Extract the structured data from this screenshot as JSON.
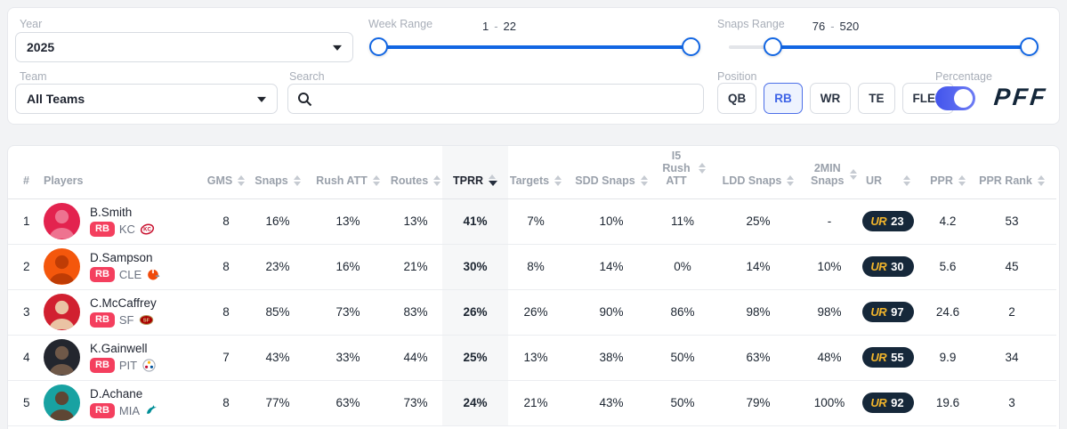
{
  "filters": {
    "year": {
      "label": "Year",
      "value": "2025"
    },
    "team": {
      "label": "Team",
      "value": "All Teams"
    },
    "search": {
      "label": "Search",
      "value": ""
    },
    "week_range": {
      "label": "Week Range",
      "min": "1",
      "sep": "-",
      "max": "22"
    },
    "snaps_range": {
      "label": "Snaps Range",
      "min": "76",
      "sep": "-",
      "max": "520"
    },
    "position": {
      "label": "Position",
      "options": [
        "QB",
        "RB",
        "WR",
        "TE",
        "FLEX"
      ],
      "selected": "RB"
    },
    "percentage": {
      "label": "Percentage",
      "enabled": true
    },
    "brand_logo": "PFF"
  },
  "colors": {
    "accent_blue": "#1266e3",
    "toggle_indigo": "#5b67f0",
    "badge_navy": "#16283a",
    "badge_yellow": "#f2b52b",
    "rb_badge_pink": "#f43f5e",
    "tprr_band": "#f6f7f8"
  },
  "table": {
    "ur_logo": "UR",
    "columns": [
      {
        "label": "#"
      },
      {
        "label": "Players"
      },
      {
        "label": "GMS",
        "sortable": true
      },
      {
        "label": "Snaps",
        "sortable": true
      },
      {
        "label": "Rush ATT",
        "sortable": true
      },
      {
        "label": "Routes",
        "sortable": true
      },
      {
        "label": "TPRR",
        "sortable": true,
        "sorted": "desc"
      },
      {
        "label": "Targets",
        "sortable": true
      },
      {
        "label": "SDD Snaps",
        "sortable": true
      },
      {
        "label": "I5 Rush\nATT",
        "sortable": true
      },
      {
        "label": "LDD Snaps",
        "sortable": true
      },
      {
        "label": "2MIN\nSnaps",
        "sortable": true
      },
      {
        "label": "UR",
        "sortable": true
      },
      {
        "label": "PPR",
        "sortable": true
      },
      {
        "label": "PPR Rank",
        "sortable": true
      }
    ],
    "rows": [
      {
        "rank": "1",
        "name": "B.Smith",
        "position": "RB",
        "team": "KC",
        "gms": "8",
        "snaps": "16%",
        "rush_att": "13%",
        "routes": "13%",
        "tprr": "41%",
        "targets": "7%",
        "sdd_snaps": "10%",
        "i5_rush_att": "11%",
        "ldd_snaps": "25%",
        "two_min_snaps": "-",
        "ur": "23",
        "ppr": "4.2",
        "ppr_rank": "53",
        "avatar_bg": "#e3234f",
        "avatar_fg": "#ee7390"
      },
      {
        "rank": "2",
        "name": "D.Sampson",
        "position": "RB",
        "team": "CLE",
        "gms": "8",
        "snaps": "23%",
        "rush_att": "16%",
        "routes": "21%",
        "tprr": "30%",
        "targets": "8%",
        "sdd_snaps": "14%",
        "i5_rush_att": "0%",
        "ldd_snaps": "14%",
        "two_min_snaps": "10%",
        "ur": "30",
        "ppr": "5.6",
        "ppr_rank": "45",
        "avatar_bg": "#f4570c",
        "avatar_fg": "#bf3c05"
      },
      {
        "rank": "3",
        "name": "C.McCaffrey",
        "position": "RB",
        "team": "SF",
        "gms": "8",
        "snaps": "85%",
        "rush_att": "73%",
        "routes": "83%",
        "tprr": "26%",
        "targets": "26%",
        "sdd_snaps": "90%",
        "i5_rush_att": "86%",
        "ldd_snaps": "98%",
        "two_min_snaps": "98%",
        "ur": "97",
        "ppr": "24.6",
        "ppr_rank": "2",
        "avatar_bg": "#d12030",
        "avatar_fg": "#eac3a4"
      },
      {
        "rank": "4",
        "name": "K.Gainwell",
        "position": "RB",
        "team": "PIT",
        "gms": "7",
        "snaps": "43%",
        "rush_att": "33%",
        "routes": "44%",
        "tprr": "25%",
        "targets": "13%",
        "sdd_snaps": "38%",
        "i5_rush_att": "50%",
        "ldd_snaps": "63%",
        "two_min_snaps": "48%",
        "ur": "55",
        "ppr": "9.9",
        "ppr_rank": "34",
        "avatar_bg": "#23262e",
        "avatar_fg": "#6f5848"
      },
      {
        "rank": "5",
        "name": "D.Achane",
        "position": "RB",
        "team": "MIA",
        "gms": "8",
        "snaps": "77%",
        "rush_att": "63%",
        "routes": "73%",
        "tprr": "24%",
        "targets": "21%",
        "sdd_snaps": "43%",
        "i5_rush_att": "50%",
        "ldd_snaps": "79%",
        "two_min_snaps": "100%",
        "ur": "92",
        "ppr": "19.6",
        "ppr_rank": "3",
        "avatar_bg": "#18a2a2",
        "avatar_fg": "#5e4634"
      }
    ]
  }
}
